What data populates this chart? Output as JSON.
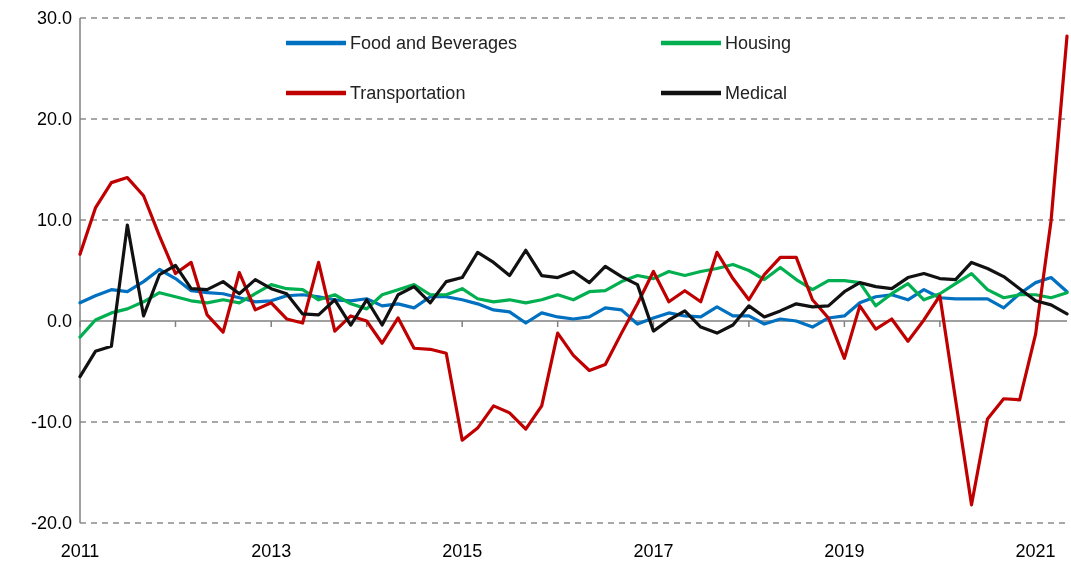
{
  "chart_data": {
    "type": "line",
    "x": [
      "2011-01",
      "2011-03",
      "2011-05",
      "2011-07",
      "2011-09",
      "2011-11",
      "2012-01",
      "2012-03",
      "2012-05",
      "2012-07",
      "2012-09",
      "2012-11",
      "2013-01",
      "2013-03",
      "2013-05",
      "2013-07",
      "2013-09",
      "2013-11",
      "2014-01",
      "2014-03",
      "2014-05",
      "2014-07",
      "2014-09",
      "2014-11",
      "2015-01",
      "2015-03",
      "2015-05",
      "2015-07",
      "2015-09",
      "2015-11",
      "2016-01",
      "2016-03",
      "2016-05",
      "2016-07",
      "2016-09",
      "2016-11",
      "2017-01",
      "2017-03",
      "2017-05",
      "2017-07",
      "2017-09",
      "2017-11",
      "2018-01",
      "2018-03",
      "2018-05",
      "2018-07",
      "2018-09",
      "2018-11",
      "2019-01",
      "2019-03",
      "2019-05",
      "2019-07",
      "2019-09",
      "2019-11",
      "2020-01",
      "2020-03",
      "2020-05",
      "2020-07",
      "2020-09",
      "2020-11",
      "2021-01",
      "2021-03",
      "2021-05"
    ],
    "series": [
      {
        "name": "Food and Beverages",
        "color": "#0070c0",
        "values": [
          1.8,
          2.5,
          3.1,
          2.9,
          3.9,
          5.1,
          4.2,
          3.0,
          2.8,
          2.7,
          2.3,
          1.9,
          2.0,
          2.5,
          2.6,
          2.4,
          2.1,
          2.0,
          2.2,
          1.5,
          1.7,
          1.3,
          2.4,
          2.4,
          2.1,
          1.7,
          1.1,
          0.9,
          -0.2,
          0.8,
          0.4,
          0.2,
          0.4,
          1.3,
          1.1,
          -0.3,
          0.3,
          0.8,
          0.5,
          0.4,
          1.4,
          0.5,
          0.5,
          -0.3,
          0.2,
          0.0,
          -0.6,
          0.3,
          0.5,
          1.8,
          2.4,
          2.6,
          2.1,
          3.1,
          2.3,
          2.2,
          2.2,
          2.2,
          1.3,
          2.7,
          3.8,
          4.3,
          2.9
        ]
      },
      {
        "name": "Housing",
        "color": "#00b050",
        "values": [
          -1.6,
          0.1,
          0.8,
          1.2,
          1.9,
          2.8,
          2.4,
          2.0,
          1.8,
          2.1,
          1.8,
          2.7,
          3.6,
          3.2,
          3.1,
          2.1,
          2.6,
          1.7,
          1.2,
          2.6,
          3.1,
          3.6,
          2.6,
          2.6,
          3.2,
          2.2,
          1.9,
          2.1,
          1.8,
          2.1,
          2.6,
          2.1,
          2.9,
          3.0,
          3.9,
          4.5,
          4.2,
          4.9,
          4.5,
          4.9,
          5.2,
          5.6,
          5.0,
          4.1,
          5.3,
          4.1,
          3.1,
          4.0,
          4.0,
          3.8,
          1.5,
          2.7,
          3.7,
          2.1,
          2.7,
          3.7,
          4.7,
          3.1,
          2.3,
          2.6,
          2.6,
          2.3,
          2.8
        ]
      },
      {
        "name": "Transportation",
        "color": "#c00000",
        "values": [
          6.6,
          11.2,
          13.7,
          14.2,
          12.4,
          8.4,
          4.7,
          5.8,
          0.6,
          -1.1,
          4.8,
          1.1,
          1.8,
          0.2,
          -0.2,
          5.8,
          -1.0,
          0.5,
          0.0,
          -2.2,
          0.3,
          -2.7,
          -2.8,
          -3.2,
          -11.8,
          -10.6,
          -8.4,
          -9.1,
          -10.7,
          -8.4,
          -1.2,
          -3.4,
          -4.9,
          -4.3,
          -1.2,
          1.7,
          4.9,
          1.9,
          3.0,
          1.9,
          6.8,
          4.2,
          2.1,
          4.6,
          6.3,
          6.3,
          2.1,
          0.3,
          -3.7,
          1.5,
          -0.8,
          0.2,
          -2.0,
          0.1,
          2.5,
          -7.8,
          -18.2,
          -9.7,
          -7.7,
          -7.8,
          -1.3,
          9.9,
          28.2
        ]
      },
      {
        "name": "Medical",
        "color": "#111111",
        "values": [
          -5.5,
          -3.0,
          -2.5,
          9.5,
          0.5,
          4.6,
          5.5,
          3.2,
          3.1,
          3.9,
          2.7,
          4.1,
          3.2,
          2.7,
          0.7,
          0.6,
          2.1,
          -0.4,
          2.1,
          -0.4,
          2.6,
          3.4,
          1.8,
          3.9,
          4.3,
          6.8,
          5.8,
          4.5,
          7.0,
          4.5,
          4.3,
          4.9,
          3.8,
          5.4,
          4.4,
          3.6,
          -1.0,
          0.1,
          1.0,
          -0.6,
          -1.2,
          -0.4,
          1.5,
          0.4,
          1.0,
          1.7,
          1.4,
          1.5,
          2.9,
          3.8,
          3.4,
          3.2,
          4.3,
          4.7,
          4.2,
          4.1,
          5.8,
          5.2,
          4.4,
          3.2,
          2.0,
          1.6,
          0.7
        ]
      }
    ],
    "xlim": [
      "2011-01",
      "2021-05"
    ],
    "xticks": [
      "2011",
      {
        "value": "2012",
        "label": null
      },
      "2013",
      {
        "value": "2014",
        "label": null
      },
      "2015",
      {
        "value": "2016",
        "label": null
      },
      "2017",
      {
        "value": "2018",
        "label": null
      },
      "2019",
      {
        "value": "2020",
        "label": null
      },
      "2021"
    ],
    "ylim": [
      -20,
      30
    ],
    "yticks": [
      {
        "value": -20,
        "label": "-20.0"
      },
      {
        "value": -10,
        "label": "-10.0"
      },
      {
        "value": 0,
        "label": "0.0"
      },
      {
        "value": 10,
        "label": "10.0"
      },
      {
        "value": 20,
        "label": "20.0"
      },
      {
        "value": 30,
        "label": "30.0"
      }
    ],
    "grid": "y",
    "legend": "top",
    "marker": "none",
    "line_style": "solid"
  }
}
